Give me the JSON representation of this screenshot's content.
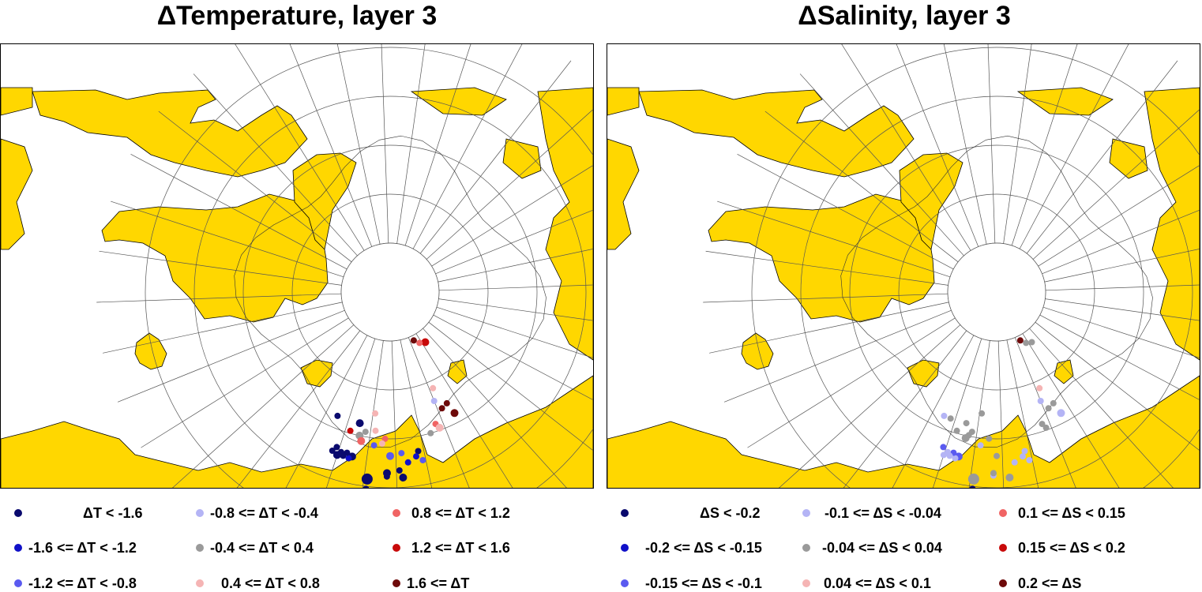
{
  "panels": [
    {
      "title": "ΔTemperature, layer 3",
      "legend": [
        {
          "label": "ΔT < -1.6",
          "color": "#0a0a6e"
        },
        {
          "label": "-1.6 <= ΔT < -1.2",
          "color": "#1010c8"
        },
        {
          "label": "-1.2 <= ΔT < -0.8",
          "color": "#5a5af0"
        },
        {
          "label": "-0.8 <= ΔT < -0.4",
          "color": "#b4b4f5"
        },
        {
          "label": "-0.4 <= ΔT < 0.4",
          "color": "#9a9a9a"
        },
        {
          "label": "0.4 <= ΔT < 0.8",
          "color": "#f5b4b4"
        },
        {
          "label": "0.8 <= ΔT < 1.2",
          "color": "#f06464"
        },
        {
          "label": "1.2 <= ΔT < 1.6",
          "color": "#c80a0a"
        },
        {
          "label": "1.6 <= ΔT",
          "color": "#6e0a0a"
        }
      ],
      "stations": [
        {
          "lon": -63,
          "lat": 77.5,
          "cls": 7,
          "size": 2
        },
        {
          "lon": -58,
          "lat": 78.0,
          "cls": 6,
          "size": 1
        },
        {
          "lon": -54,
          "lat": 79.0,
          "cls": 8,
          "size": 1
        },
        {
          "lon": -52,
          "lat": 68.5,
          "cls": 5,
          "size": 1
        },
        {
          "lon": -50,
          "lat": 66.0,
          "cls": 3,
          "size": 1
        },
        {
          "lon": -55,
          "lat": 64.5,
          "cls": 8,
          "size": 1
        },
        {
          "lon": -52,
          "lat": 64.0,
          "cls": 8,
          "size": 1
        },
        {
          "lon": -56,
          "lat": 62.0,
          "cls": 8,
          "size": 2
        },
        {
          "lon": -47,
          "lat": 61.5,
          "cls": 6,
          "size": 1
        },
        {
          "lon": -48,
          "lat": 60.5,
          "cls": 5,
          "size": 2
        },
        {
          "lon": -44,
          "lat": 60.0,
          "cls": 4,
          "size": 1
        },
        {
          "lon": -21,
          "lat": 65.0,
          "cls": 5,
          "size": 1
        },
        {
          "lon": -38,
          "lat": 57.0,
          "cls": 0,
          "size": 1
        },
        {
          "lon": -37,
          "lat": 56.0,
          "cls": 1,
          "size": 1
        },
        {
          "lon": -39,
          "lat": 55.0,
          "cls": 2,
          "size": 1
        },
        {
          "lon": -34,
          "lat": 55.0,
          "cls": 1,
          "size": 1
        },
        {
          "lon": -32,
          "lat": 57.0,
          "cls": 2,
          "size": 1
        },
        {
          "lon": -28,
          "lat": 56.5,
          "cls": 2,
          "size": 2
        },
        {
          "lon": -31,
          "lat": 53.5,
          "cls": 0,
          "size": 1
        },
        {
          "lon": -15,
          "lat": 62.5,
          "cls": 0,
          "size": 2
        },
        {
          "lon": -22,
          "lat": 61.5,
          "cls": 5,
          "size": 1
        },
        {
          "lon": -26,
          "lat": 60.0,
          "cls": 6,
          "size": 1
        },
        {
          "lon": -25,
          "lat": 59.0,
          "cls": 5,
          "size": 1
        },
        {
          "lon": -18,
          "lat": 61.0,
          "cls": 4,
          "size": 1
        },
        {
          "lon": -16,
          "lat": 60.0,
          "cls": 4,
          "size": 2
        },
        {
          "lon": -17,
          "lat": 59.0,
          "cls": 6,
          "size": 2
        },
        {
          "lon": -12,
          "lat": 60.5,
          "cls": 7,
          "size": 1
        },
        {
          "lon": -22,
          "lat": 58.5,
          "cls": 2,
          "size": 1
        },
        {
          "lon": -5,
          "lat": 62.5,
          "cls": 0,
          "size": 1
        },
        {
          "lon": -27,
          "lat": 53.0,
          "cls": 0,
          "size": 2
        },
        {
          "lon": -27,
          "lat": 52.3,
          "cls": 0,
          "size": 1
        },
        {
          "lon": -21,
          "lat": 51.5,
          "cls": 0,
          "size": 3
        },
        {
          "lon": -15,
          "lat": 55.5,
          "cls": 0,
          "size": 2
        },
        {
          "lon": -14,
          "lat": 55.0,
          "cls": 1,
          "size": 1
        },
        {
          "lon": -13,
          "lat": 56.0,
          "cls": 0,
          "size": 1
        },
        {
          "lon": -12,
          "lat": 55.2,
          "cls": 0,
          "size": 1
        },
        {
          "lon": -11,
          "lat": 55.8,
          "cls": 0,
          "size": 1
        },
        {
          "lon": -10,
          "lat": 55.0,
          "cls": 0,
          "size": 2
        },
        {
          "lon": -9,
          "lat": 56.5,
          "cls": 0,
          "size": 1
        },
        {
          "lon": -8,
          "lat": 55.5,
          "cls": 0,
          "size": 1
        },
        {
          "lon": -21,
          "lat": 49.5,
          "cls": 0,
          "size": 1
        },
        {
          "lon": -32,
          "lat": 52.0,
          "cls": 0,
          "size": 2
        }
      ]
    },
    {
      "title": "ΔSalinity, layer 3",
      "legend": [
        {
          "label": "ΔS < -0.2",
          "color": "#0a0a6e"
        },
        {
          "label": "-0.2 <= ΔS < -0.15",
          "color": "#1010c8"
        },
        {
          "label": "-0.15 <= ΔS < -0.1",
          "color": "#5a5af0"
        },
        {
          "label": "-0.1 <= ΔS < -0.04",
          "color": "#b4b4f5"
        },
        {
          "label": "-0.04 <= ΔS < 0.04",
          "color": "#9a9a9a"
        },
        {
          "label": "0.04 <= ΔS < 0.1",
          "color": "#f5b4b4"
        },
        {
          "label": "0.1 <= ΔS < 0.15",
          "color": "#f06464"
        },
        {
          "label": "0.15 <= ΔS < 0.2",
          "color": "#c80a0a"
        },
        {
          "label": "0.2 <= ΔS",
          "color": "#6e0a0a"
        }
      ],
      "stations": [
        {
          "lon": -63,
          "lat": 77.5,
          "cls": 4,
          "size": 1
        },
        {
          "lon": -58,
          "lat": 78.0,
          "cls": 4,
          "size": 1
        },
        {
          "lon": -54,
          "lat": 79.0,
          "cls": 8,
          "size": 1
        },
        {
          "lon": -52,
          "lat": 68.5,
          "cls": 5,
          "size": 1
        },
        {
          "lon": -50,
          "lat": 66.0,
          "cls": 3,
          "size": 1
        },
        {
          "lon": -55,
          "lat": 64.5,
          "cls": 4,
          "size": 1
        },
        {
          "lon": -52,
          "lat": 64.0,
          "cls": 4,
          "size": 1
        },
        {
          "lon": -56,
          "lat": 62.0,
          "cls": 3,
          "size": 2
        },
        {
          "lon": -48,
          "lat": 60.5,
          "cls": 4,
          "size": 1
        },
        {
          "lon": -47,
          "lat": 61.5,
          "cls": 4,
          "size": 1
        },
        {
          "lon": -38,
          "lat": 57.0,
          "cls": 3,
          "size": 1
        },
        {
          "lon": -37,
          "lat": 56.0,
          "cls": 3,
          "size": 1
        },
        {
          "lon": -34,
          "lat": 55.0,
          "cls": 3,
          "size": 1
        },
        {
          "lon": -39,
          "lat": 55.0,
          "cls": 3,
          "size": 1
        },
        {
          "lon": -28,
          "lat": 56.5,
          "cls": 4,
          "size": 1
        },
        {
          "lon": -25,
          "lat": 60.0,
          "cls": 4,
          "size": 1
        },
        {
          "lon": -22,
          "lat": 58.5,
          "cls": 3,
          "size": 1
        },
        {
          "lon": -18,
          "lat": 61.0,
          "cls": 4,
          "size": 1
        },
        {
          "lon": -17,
          "lat": 60.2,
          "cls": 4,
          "size": 1
        },
        {
          "lon": -16,
          "lat": 59.5,
          "cls": 4,
          "size": 2
        },
        {
          "lon": -12,
          "lat": 60.5,
          "cls": 4,
          "size": 1
        },
        {
          "lon": -21,
          "lat": 65.0,
          "cls": 4,
          "size": 1
        },
        {
          "lon": -15,
          "lat": 62.5,
          "cls": 4,
          "size": 1
        },
        {
          "lon": -8,
          "lat": 62.5,
          "cls": 4,
          "size": 1
        },
        {
          "lon": -5,
          "lat": 62.5,
          "cls": 3,
          "size": 1
        },
        {
          "lon": -32,
          "lat": 52.0,
          "cls": 4,
          "size": 2
        },
        {
          "lon": -27,
          "lat": 52.5,
          "cls": 3,
          "size": 1
        },
        {
          "lon": -27,
          "lat": 53.0,
          "cls": 4,
          "size": 1
        },
        {
          "lon": -21,
          "lat": 51.5,
          "cls": 4,
          "size": 3
        },
        {
          "lon": -15,
          "lat": 55.5,
          "cls": 2,
          "size": 2
        },
        {
          "lon": -14,
          "lat": 55.0,
          "cls": 3,
          "size": 1
        },
        {
          "lon": -13,
          "lat": 56.0,
          "cls": 2,
          "size": 1
        },
        {
          "lon": -12,
          "lat": 55.2,
          "cls": 3,
          "size": 1
        },
        {
          "lon": -11,
          "lat": 55.8,
          "cls": 3,
          "size": 1
        },
        {
          "lon": -10,
          "lat": 55.0,
          "cls": 3,
          "size": 1
        },
        {
          "lon": -9,
          "lat": 56.5,
          "cls": 2,
          "size": 1
        },
        {
          "lon": -21,
          "lat": 49.5,
          "cls": 0,
          "size": 1
        }
      ]
    }
  ],
  "map_style": {
    "land_color": "#ffd700",
    "coast_color": "#000000",
    "ocean_color": "#ffffff",
    "graticule_color": "#555555"
  }
}
